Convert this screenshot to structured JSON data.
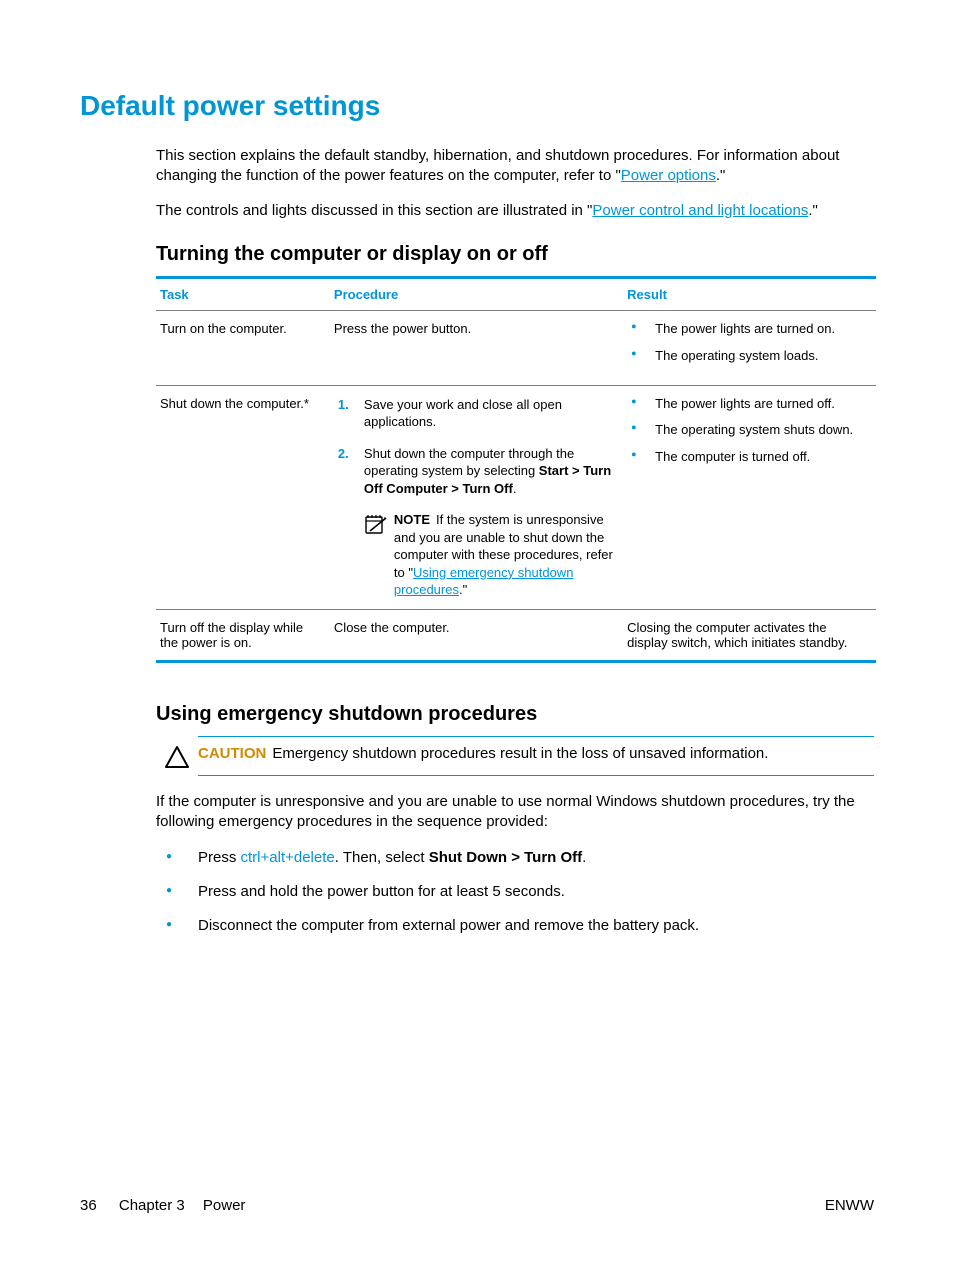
{
  "colors": {
    "accent": "#0096d6",
    "heading": "#0096d6",
    "link": "#0096d6",
    "caution_label": "#d18b00",
    "bullet": "#0096d6",
    "step_number": "#0096d6",
    "table_border": "#0096d6",
    "cell_border": "#808080",
    "text": "#000000"
  },
  "page_title": "Default power settings",
  "intro": {
    "p1_pre": "This section explains the default standby, hibernation, and shutdown procedures. For information about changing the function of the power features on the computer, refer to \"",
    "p1_link": "Power options",
    "p1_post": ".\"",
    "p2_pre": "The controls and lights discussed in this section are illustrated in \"",
    "p2_link": "Power control and light locations",
    "p2_post": ".\""
  },
  "section1_title": "Turning the computer or display on or off",
  "table": {
    "headers": {
      "task": "Task",
      "procedure": "Procedure",
      "result": "Result"
    },
    "rows": [
      {
        "task": "Turn on the computer.",
        "procedure_text": "Press the power button.",
        "results": [
          "The power lights are turned on.",
          "The operating system loads."
        ]
      },
      {
        "task": "Shut down the computer.*",
        "steps": [
          {
            "text": "Save your work and close all open applications."
          },
          {
            "prefix": "Shut down the computer through the operating system by selecting ",
            "bold": "Start > Turn Off Computer > Turn Off",
            "suffix": "."
          }
        ],
        "note": {
          "label": "NOTE",
          "text_pre": "If the system is unresponsive and you are unable to shut down the computer with these procedures, refer to \"",
          "link": "Using emergency shutdown procedures",
          "text_post": ".\""
        },
        "results": [
          "The power lights are turned off.",
          "The operating system shuts down.",
          "The computer is turned off."
        ]
      },
      {
        "task": "Turn off the display while the power is on.",
        "procedure_text": "Close the computer.",
        "result_text": "Closing the computer activates the display switch, which initiates standby."
      }
    ]
  },
  "section2_title": "Using emergency shutdown procedures",
  "caution": {
    "label": "CAUTION",
    "text": "Emergency shutdown procedures result in the loss of unsaved information."
  },
  "body2": "If the computer is unresponsive and you are unable to use normal Windows shutdown procedures, try the following emergency procedures in the sequence provided:",
  "emergency_list": [
    {
      "pre": "Press ",
      "key": "ctrl+alt+delete",
      "mid": ". Then, select ",
      "bold": "Shut Down > Turn Off",
      "post": "."
    },
    {
      "text": "Press and hold the power button for at least 5 seconds."
    },
    {
      "text": "Disconnect the computer from external power and remove the battery pack."
    }
  ],
  "footer": {
    "page_number": "36",
    "chapter": "Chapter 3",
    "chapter_title": "Power",
    "right": "ENWW"
  }
}
